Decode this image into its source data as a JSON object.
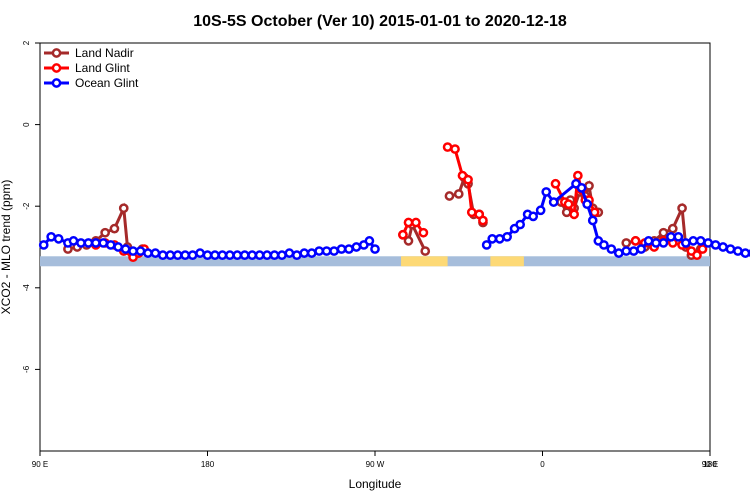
{
  "chart_data": {
    "type": "line",
    "title": "10S-5S October (Ver 10)   2015-01-01 to 2020-12-18",
    "xlabel": "Longitude",
    "ylabel": "XCO2 - MLO trend (ppm)",
    "xlim": [
      90,
      450
    ],
    "ylim": [
      -8,
      2
    ],
    "x_ticks": [
      {
        "value": 90,
        "label": "90 E"
      },
      {
        "value": 180,
        "label": "180"
      },
      {
        "value": 270,
        "label": "90 W"
      },
      {
        "value": 360,
        "label": "0"
      },
      {
        "value": 450,
        "label": "90 E"
      },
      {
        "value": 540,
        "label": "180"
      }
    ],
    "y_ticks": [
      {
        "value": 2,
        "label": "2"
      },
      {
        "value": 0,
        "label": "0"
      },
      {
        "value": -2,
        "label": "-2"
      },
      {
        "value": -4,
        "label": "-4"
      },
      {
        "value": -6,
        "label": "-6"
      }
    ],
    "legend_position": "top-left",
    "grid": false,
    "series": [
      {
        "name": "Land Nadir",
        "color": "#a52a2a",
        "points": [
          [
            105,
            -3.05
          ],
          [
            110,
            -3.0
          ],
          [
            115,
            -2.95
          ],
          [
            120,
            -2.85
          ],
          [
            125,
            -2.65
          ],
          [
            130,
            -2.55
          ],
          [
            135,
            -2.05
          ],
          [
            137,
            -3.0
          ],
          [
            140,
            -3.2
          ],
          [
            145,
            -3.05
          ],
          [
            285,
            -2.7
          ],
          [
            288,
            -2.85
          ],
          [
            290,
            -2.45
          ],
          [
            297,
            -3.1
          ],
          [
            310,
            -1.75
          ],
          [
            315,
            -1.7
          ],
          [
            318,
            -1.3
          ],
          [
            320,
            -1.45
          ],
          [
            323,
            -2.2
          ],
          [
            326,
            -2.2
          ],
          [
            328,
            -2.4
          ],
          [
            370,
            -1.9
          ],
          [
            373,
            -2.15
          ],
          [
            375,
            -1.85
          ],
          [
            377,
            -2.05
          ],
          [
            380,
            -1.65
          ],
          [
            383,
            -1.75
          ],
          [
            385,
            -1.5
          ],
          [
            387,
            -2.05
          ],
          [
            390,
            -2.15
          ],
          [
            405,
            -2.9
          ],
          [
            410,
            -2.85
          ],
          [
            415,
            -3.0
          ],
          [
            420,
            -2.85
          ],
          [
            425,
            -2.65
          ],
          [
            430,
            -2.55
          ],
          [
            435,
            -2.05
          ],
          [
            437,
            -3.0
          ],
          [
            440,
            -3.2
          ],
          [
            445,
            -3.05
          ]
        ]
      },
      {
        "name": "Land Glint",
        "color": "#ff0000",
        "points": [
          [
            120,
            -2.95
          ],
          [
            125,
            -2.9
          ],
          [
            130,
            -2.95
          ],
          [
            135,
            -3.1
          ],
          [
            140,
            -3.25
          ],
          [
            143,
            -3.15
          ],
          [
            146,
            -3.05
          ],
          [
            285,
            -2.7
          ],
          [
            288,
            -2.4
          ],
          [
            292,
            -2.4
          ],
          [
            296,
            -2.65
          ],
          [
            309,
            -0.55
          ],
          [
            313,
            -0.6
          ],
          [
            317,
            -1.25
          ],
          [
            320,
            -1.35
          ],
          [
            322,
            -2.15
          ],
          [
            326,
            -2.2
          ],
          [
            328,
            -2.35
          ],
          [
            367,
            -1.45
          ],
          [
            372,
            -1.9
          ],
          [
            374,
            -1.95
          ],
          [
            377,
            -2.2
          ],
          [
            379,
            -1.25
          ],
          [
            381,
            -1.6
          ],
          [
            383,
            -1.85
          ],
          [
            385,
            -1.85
          ],
          [
            388,
            -2.15
          ],
          [
            410,
            -2.85
          ],
          [
            415,
            -2.9
          ],
          [
            420,
            -3.0
          ],
          [
            425,
            -2.85
          ],
          [
            430,
            -2.9
          ],
          [
            435,
            -2.95
          ],
          [
            440,
            -3.1
          ],
          [
            443,
            -3.2
          ],
          [
            446,
            -3.05
          ]
        ]
      },
      {
        "name": "Ocean Glint",
        "color": "#0000ff",
        "points": [
          [
            92,
            -2.95
          ],
          [
            96,
            -2.75
          ],
          [
            100,
            -2.8
          ],
          [
            105,
            -2.9
          ],
          [
            108,
            -2.85
          ],
          [
            112,
            -2.9
          ],
          [
            116,
            -2.9
          ],
          [
            120,
            -2.9
          ],
          [
            124,
            -2.9
          ],
          [
            128,
            -2.95
          ],
          [
            132,
            -3.0
          ],
          [
            136,
            -3.05
          ],
          [
            140,
            -3.1
          ],
          [
            144,
            -3.1
          ],
          [
            148,
            -3.15
          ],
          [
            152,
            -3.15
          ],
          [
            156,
            -3.2
          ],
          [
            160,
            -3.2
          ],
          [
            164,
            -3.2
          ],
          [
            168,
            -3.2
          ],
          [
            172,
            -3.2
          ],
          [
            176,
            -3.15
          ],
          [
            180,
            -3.2
          ],
          [
            184,
            -3.2
          ],
          [
            188,
            -3.2
          ],
          [
            192,
            -3.2
          ],
          [
            196,
            -3.2
          ],
          [
            200,
            -3.2
          ],
          [
            204,
            -3.2
          ],
          [
            208,
            -3.2
          ],
          [
            212,
            -3.2
          ],
          [
            216,
            -3.2
          ],
          [
            220,
            -3.2
          ],
          [
            224,
            -3.15
          ],
          [
            228,
            -3.2
          ],
          [
            232,
            -3.15
          ],
          [
            236,
            -3.15
          ],
          [
            240,
            -3.1
          ],
          [
            244,
            -3.1
          ],
          [
            248,
            -3.1
          ],
          [
            252,
            -3.05
          ],
          [
            256,
            -3.05
          ],
          [
            260,
            -3.0
          ],
          [
            264,
            -2.95
          ],
          [
            267,
            -2.85
          ],
          [
            270,
            -3.05
          ],
          [
            330,
            -2.95
          ],
          [
            333,
            -2.8
          ],
          [
            337,
            -2.8
          ],
          [
            341,
            -2.75
          ],
          [
            345,
            -2.55
          ],
          [
            348,
            -2.45
          ],
          [
            352,
            -2.2
          ],
          [
            355,
            -2.25
          ],
          [
            359,
            -2.1
          ],
          [
            362,
            -1.65
          ],
          [
            366,
            -1.9
          ],
          [
            378,
            -1.45
          ],
          [
            381,
            -1.55
          ],
          [
            384,
            -1.95
          ],
          [
            387,
            -2.35
          ],
          [
            390,
            -2.85
          ],
          [
            393,
            -2.95
          ],
          [
            397,
            -3.05
          ],
          [
            401,
            -3.15
          ],
          [
            405,
            -3.1
          ],
          [
            409,
            -3.1
          ],
          [
            413,
            -3.05
          ],
          [
            417,
            -2.85
          ],
          [
            421,
            -2.9
          ],
          [
            425,
            -2.9
          ],
          [
            429,
            -2.75
          ],
          [
            433,
            -2.75
          ],
          [
            437,
            -2.9
          ],
          [
            441,
            -2.85
          ],
          [
            445,
            -2.85
          ],
          [
            449,
            -2.9
          ],
          [
            453,
            -2.95
          ],
          [
            457,
            -3.0
          ],
          [
            461,
            -3.05
          ],
          [
            465,
            -3.1
          ],
          [
            469,
            -3.15
          ],
          [
            473,
            -3.15
          ],
          [
            477,
            -3.15
          ],
          [
            481,
            -3.2
          ],
          [
            485,
            -3.2
          ],
          [
            489,
            -3.2
          ]
        ]
      }
    ],
    "geography_band": {
      "y": -3.35,
      "ocean_color": "#a6bddb",
      "land_color": "#fdd976",
      "land_ranges": [
        [
          284,
          309
        ],
        [
          332,
          350
        ]
      ]
    }
  }
}
